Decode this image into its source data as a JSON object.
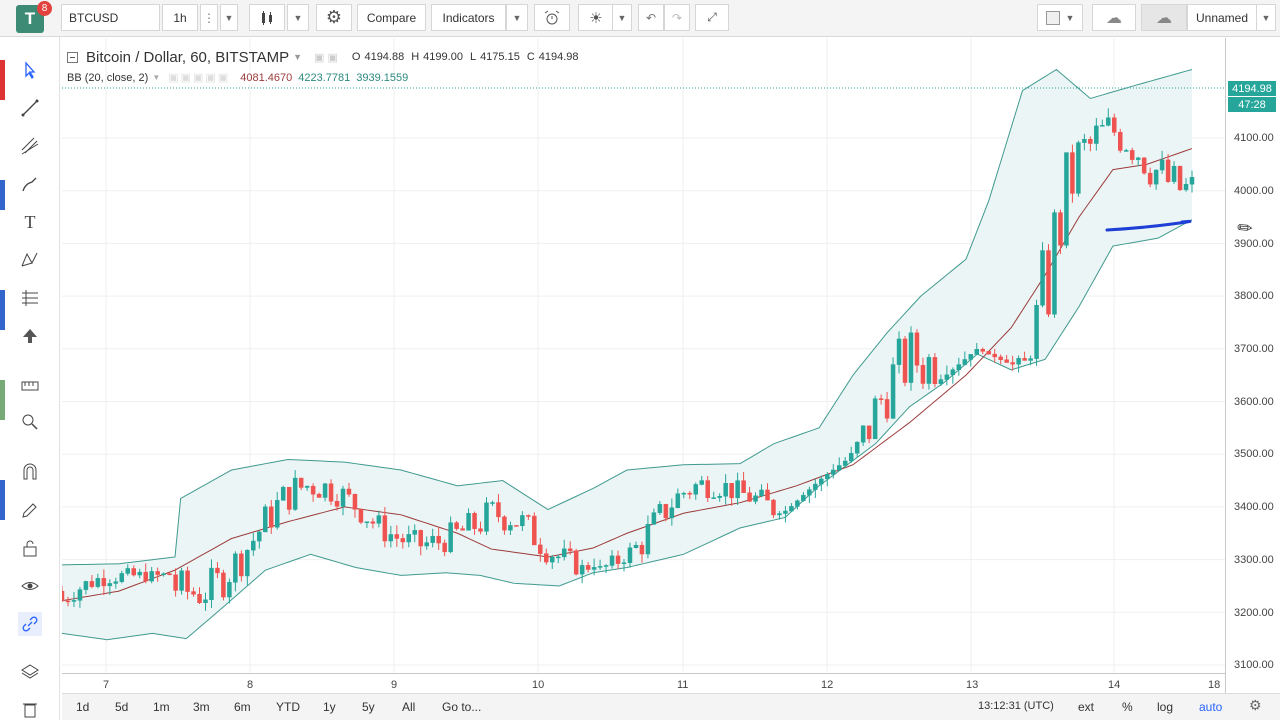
{
  "app": {
    "logo": "T",
    "badge": "8"
  },
  "toolbar": {
    "symbol": "BTCUSD",
    "interval": "1h",
    "compare": "Compare",
    "indicators": "Indicators",
    "layout_name": "Unnamed"
  },
  "legend": {
    "title": "Bitcoin / Dollar, 60, BITSTAMP",
    "o_label": "O",
    "o": "4194.88",
    "h_label": "H",
    "h": "4199.00",
    "l_label": "L",
    "l": "4175.15",
    "c_label": "C",
    "c": "4194.98",
    "bb_name": "BB (20, close, 2)",
    "bb_mid": "4081.4670",
    "bb_upper": "4223.7781",
    "bb_lower": "3939.1559"
  },
  "price_scale": {
    "labels": [
      "4100.00",
      "4000.00",
      "3900.00",
      "3800.00",
      "3700.00",
      "3600.00",
      "3500.00",
      "3400.00",
      "3300.00",
      "3200.00",
      "3100.00"
    ],
    "last_price": "4194.98",
    "countdown": "47:28"
  },
  "time_scale": {
    "labels": [
      "7",
      "8",
      "9",
      "10",
      "11",
      "12",
      "13",
      "14",
      "18"
    ]
  },
  "bottom": {
    "ranges": [
      "1d",
      "5d",
      "1m",
      "3m",
      "6m",
      "YTD",
      "1y",
      "5y",
      "All"
    ],
    "goto": "Go to...",
    "clock": "13:12:31 (UTC)",
    "ext": "ext",
    "percent": "%",
    "log": "log",
    "auto": "auto"
  },
  "chart_data": {
    "type": "candlestick",
    "symbol": "BTCUSD",
    "interval": "60",
    "x_labels": [
      "7",
      "8",
      "9",
      "10",
      "11",
      "12",
      "13",
      "14",
      "18"
    ],
    "ylim": [
      3070,
      4290
    ],
    "y_ticks": [
      3100,
      3200,
      3300,
      3400,
      3500,
      3600,
      3700,
      3800,
      3900,
      4000,
      4100
    ],
    "last": 4194.98,
    "bollinger_mid": [
      [
        0,
        3222
      ],
      [
        0.05,
        3240
      ],
      [
        0.1,
        3280
      ],
      [
        0.15,
        3340
      ],
      [
        0.2,
        3372
      ],
      [
        0.25,
        3400
      ],
      [
        0.3,
        3385
      ],
      [
        0.35,
        3350
      ],
      [
        0.38,
        3320
      ],
      [
        0.43,
        3305
      ],
      [
        0.47,
        3322
      ],
      [
        0.5,
        3350
      ],
      [
        0.55,
        3388
      ],
      [
        0.6,
        3408
      ],
      [
        0.65,
        3440
      ],
      [
        0.7,
        3480
      ],
      [
        0.75,
        3560
      ],
      [
        0.8,
        3650
      ],
      [
        0.84,
        3740
      ],
      [
        0.87,
        3840
      ],
      [
        0.9,
        3950
      ],
      [
        0.93,
        4040
      ],
      [
        0.96,
        4050
      ],
      [
        1,
        4080
      ]
    ],
    "bollinger_upper": [
      [
        0,
        3290
      ],
      [
        0.05,
        3292
      ],
      [
        0.1,
        3305
      ],
      [
        0.1,
        3410
      ],
      [
        0.15,
        3470
      ],
      [
        0.2,
        3490
      ],
      [
        0.25,
        3485
      ],
      [
        0.3,
        3470
      ],
      [
        0.35,
        3440
      ],
      [
        0.39,
        3450
      ],
      [
        0.43,
        3395
      ],
      [
        0.47,
        3435
      ],
      [
        0.5,
        3470
      ],
      [
        0.55,
        3480
      ],
      [
        0.6,
        3482
      ],
      [
        0.63,
        3520
      ],
      [
        0.67,
        3550
      ],
      [
        0.7,
        3650
      ],
      [
        0.73,
        3730
      ],
      [
        0.76,
        3800
      ],
      [
        0.8,
        3870
      ],
      [
        0.82,
        3980
      ],
      [
        0.85,
        4190
      ],
      [
        0.88,
        4230
      ],
      [
        0.91,
        4175
      ],
      [
        0.95,
        4200
      ],
      [
        1,
        4230
      ]
    ],
    "bollinger_lower": [
      [
        0,
        3160
      ],
      [
        0.04,
        3148
      ],
      [
        0.08,
        3160
      ],
      [
        0.11,
        3150
      ],
      [
        0.14,
        3205
      ],
      [
        0.18,
        3280
      ],
      [
        0.22,
        3310
      ],
      [
        0.26,
        3285
      ],
      [
        0.3,
        3270
      ],
      [
        0.34,
        3275
      ],
      [
        0.37,
        3270
      ],
      [
        0.4,
        3255
      ],
      [
        0.44,
        3250
      ],
      [
        0.47,
        3275
      ],
      [
        0.5,
        3285
      ],
      [
        0.55,
        3310
      ],
      [
        0.6,
        3360
      ],
      [
        0.64,
        3380
      ],
      [
        0.67,
        3440
      ],
      [
        0.72,
        3520
      ],
      [
        0.75,
        3590
      ],
      [
        0.78,
        3635
      ],
      [
        0.81,
        3690
      ],
      [
        0.84,
        3660
      ],
      [
        0.87,
        3680
      ],
      [
        0.9,
        3780
      ],
      [
        0.93,
        3895
      ],
      [
        0.97,
        3910
      ],
      [
        1,
        3945
      ]
    ]
  },
  "colors": {
    "up": "#26a69a",
    "down": "#ef5350",
    "band_fill": "#ebf5f5",
    "band_line": "#3f9a8f",
    "mid_line": "#9c3b3b",
    "accent": "#3d8b74"
  }
}
